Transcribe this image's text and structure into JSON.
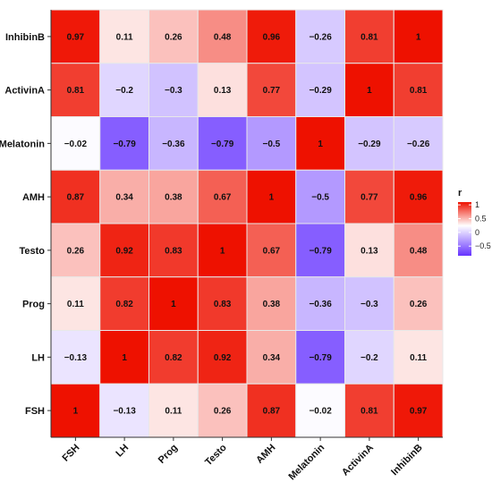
{
  "chart_data": {
    "type": "heatmap",
    "x_categories": [
      "FSH",
      "LH",
      "Prog",
      "Testo",
      "AMH",
      "Melatonin",
      "ActivinA",
      "InhibinB"
    ],
    "y_categories": [
      "InhibinB",
      "ActivinA",
      "Melatonin",
      "AMH",
      "Testo",
      "Prog",
      "LH",
      "FSH"
    ],
    "values": [
      [
        0.97,
        0.11,
        0.26,
        0.48,
        0.96,
        -0.26,
        0.81,
        1
      ],
      [
        0.81,
        -0.2,
        -0.3,
        0.13,
        0.77,
        -0.29,
        1,
        0.81
      ],
      [
        -0.02,
        -0.79,
        -0.36,
        -0.79,
        -0.5,
        1,
        -0.29,
        -0.26
      ],
      [
        0.87,
        0.34,
        0.38,
        0.67,
        1,
        -0.5,
        0.77,
        0.96
      ],
      [
        0.26,
        0.92,
        0.83,
        1,
        0.67,
        -0.79,
        0.13,
        0.48
      ],
      [
        0.11,
        0.82,
        1,
        0.83,
        0.38,
        -0.36,
        -0.3,
        0.26
      ],
      [
        -0.13,
        1,
        0.82,
        0.92,
        0.34,
        -0.79,
        -0.2,
        0.11
      ],
      [
        1,
        -0.13,
        0.11,
        0.26,
        0.87,
        -0.02,
        0.81,
        0.97
      ]
    ],
    "cell_labels": [
      [
        "0.97",
        "0.11",
        "0.26",
        "0.48",
        "0.96",
        "−0.26",
        "0.81",
        "1"
      ],
      [
        "0.81",
        "−0.2",
        "−0.3",
        "0.13",
        "0.77",
        "−0.29",
        "1",
        "0.81"
      ],
      [
        "−0.02",
        "−0.79",
        "−0.36",
        "−0.79",
        "−0.5",
        "1",
        "−0.29",
        "−0.26"
      ],
      [
        "0.87",
        "0.34",
        "0.38",
        "0.67",
        "1",
        "−0.5",
        "0.77",
        "0.96"
      ],
      [
        "0.26",
        "0.92",
        "0.83",
        "1",
        "0.67",
        "−0.79",
        "0.13",
        "0.48"
      ],
      [
        "0.11",
        "0.82",
        "1",
        "0.83",
        "0.38",
        "−0.36",
        "−0.3",
        "0.26"
      ],
      [
        "−0.13",
        "1",
        "0.82",
        "0.92",
        "0.34",
        "−0.79",
        "−0.2",
        "0.11"
      ],
      [
        "1",
        "−0.13",
        "0.11",
        "0.26",
        "0.87",
        "−0.02",
        "0.81",
        "0.97"
      ]
    ],
    "legend": {
      "title": "r",
      "placement": "right",
      "range": [
        -0.79,
        1
      ],
      "ticks": [
        1,
        0.5,
        0,
        -0.5
      ],
      "tick_labels": [
        "1",
        "0.5",
        "0",
        "−0.5"
      ]
    },
    "colors": {
      "low": "#6633ff",
      "mid": "#ffffff",
      "high": "#ee1100",
      "grid": "#e8e8e8"
    }
  }
}
